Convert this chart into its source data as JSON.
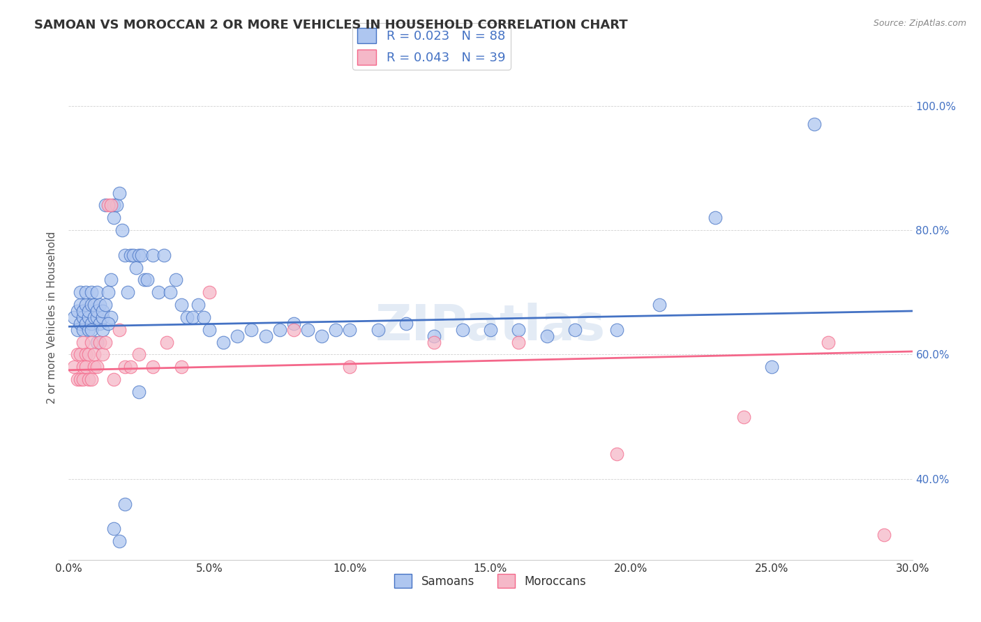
{
  "title": "SAMOAN VS MOROCCAN 2 OR MORE VEHICLES IN HOUSEHOLD CORRELATION CHART",
  "source": "Source: ZipAtlas.com",
  "ylabel": "2 or more Vehicles in Household",
  "xmin": 0.0,
  "xmax": 0.3,
  "ymin": 0.27,
  "ymax": 1.05,
  "yticks": [
    0.4,
    0.6,
    0.8,
    1.0
  ],
  "ytick_labels": [
    "40.0%",
    "60.0%",
    "80.0%",
    "100.0%"
  ],
  "samoans_R": 0.023,
  "samoans_N": 88,
  "moroccans_R": 0.043,
  "moroccans_N": 39,
  "dot_color_samoans": "#aec6f0",
  "dot_color_moroccans": "#f5b8c8",
  "line_color_samoans": "#4472c4",
  "line_color_moroccans": "#f4678a",
  "watermark": "ZIPatlas",
  "samoans_x": [
    0.002,
    0.003,
    0.003,
    0.004,
    0.004,
    0.004,
    0.005,
    0.005,
    0.005,
    0.006,
    0.006,
    0.006,
    0.007,
    0.007,
    0.007,
    0.008,
    0.008,
    0.008,
    0.009,
    0.009,
    0.01,
    0.01,
    0.01,
    0.011,
    0.011,
    0.012,
    0.012,
    0.013,
    0.013,
    0.014,
    0.015,
    0.015,
    0.016,
    0.016,
    0.017,
    0.018,
    0.019,
    0.02,
    0.021,
    0.022,
    0.023,
    0.024,
    0.025,
    0.026,
    0.027,
    0.028,
    0.03,
    0.032,
    0.034,
    0.036,
    0.038,
    0.04,
    0.042,
    0.044,
    0.046,
    0.048,
    0.05,
    0.055,
    0.06,
    0.065,
    0.07,
    0.075,
    0.08,
    0.085,
    0.09,
    0.095,
    0.1,
    0.11,
    0.12,
    0.13,
    0.14,
    0.15,
    0.16,
    0.17,
    0.18,
    0.195,
    0.21,
    0.23,
    0.25,
    0.265,
    0.008,
    0.01,
    0.012,
    0.014,
    0.016,
    0.018,
    0.02,
    0.025
  ],
  "samoans_y": [
    0.66,
    0.67,
    0.64,
    0.68,
    0.65,
    0.7,
    0.66,
    0.67,
    0.64,
    0.68,
    0.65,
    0.7,
    0.66,
    0.67,
    0.64,
    0.68,
    0.65,
    0.7,
    0.66,
    0.68,
    0.66,
    0.67,
    0.7,
    0.68,
    0.65,
    0.66,
    0.67,
    0.84,
    0.68,
    0.7,
    0.72,
    0.66,
    0.82,
    0.84,
    0.84,
    0.86,
    0.8,
    0.76,
    0.7,
    0.76,
    0.76,
    0.74,
    0.76,
    0.76,
    0.72,
    0.72,
    0.76,
    0.7,
    0.76,
    0.7,
    0.72,
    0.68,
    0.66,
    0.66,
    0.68,
    0.66,
    0.64,
    0.62,
    0.63,
    0.64,
    0.63,
    0.64,
    0.65,
    0.64,
    0.63,
    0.64,
    0.64,
    0.64,
    0.65,
    0.63,
    0.64,
    0.64,
    0.64,
    0.63,
    0.64,
    0.64,
    0.68,
    0.82,
    0.58,
    0.97,
    0.64,
    0.62,
    0.64,
    0.65,
    0.32,
    0.3,
    0.36,
    0.54
  ],
  "moroccans_x": [
    0.002,
    0.003,
    0.003,
    0.004,
    0.004,
    0.005,
    0.005,
    0.005,
    0.006,
    0.006,
    0.007,
    0.007,
    0.008,
    0.008,
    0.009,
    0.009,
    0.01,
    0.011,
    0.012,
    0.013,
    0.014,
    0.015,
    0.016,
    0.018,
    0.02,
    0.022,
    0.025,
    0.03,
    0.035,
    0.04,
    0.05,
    0.08,
    0.1,
    0.13,
    0.16,
    0.195,
    0.24,
    0.27,
    0.29
  ],
  "moroccans_y": [
    0.58,
    0.56,
    0.6,
    0.56,
    0.6,
    0.56,
    0.58,
    0.62,
    0.6,
    0.58,
    0.6,
    0.56,
    0.62,
    0.56,
    0.58,
    0.6,
    0.58,
    0.62,
    0.6,
    0.62,
    0.84,
    0.84,
    0.56,
    0.64,
    0.58,
    0.58,
    0.6,
    0.58,
    0.62,
    0.58,
    0.7,
    0.64,
    0.58,
    0.62,
    0.62,
    0.44,
    0.5,
    0.62,
    0.31
  ]
}
